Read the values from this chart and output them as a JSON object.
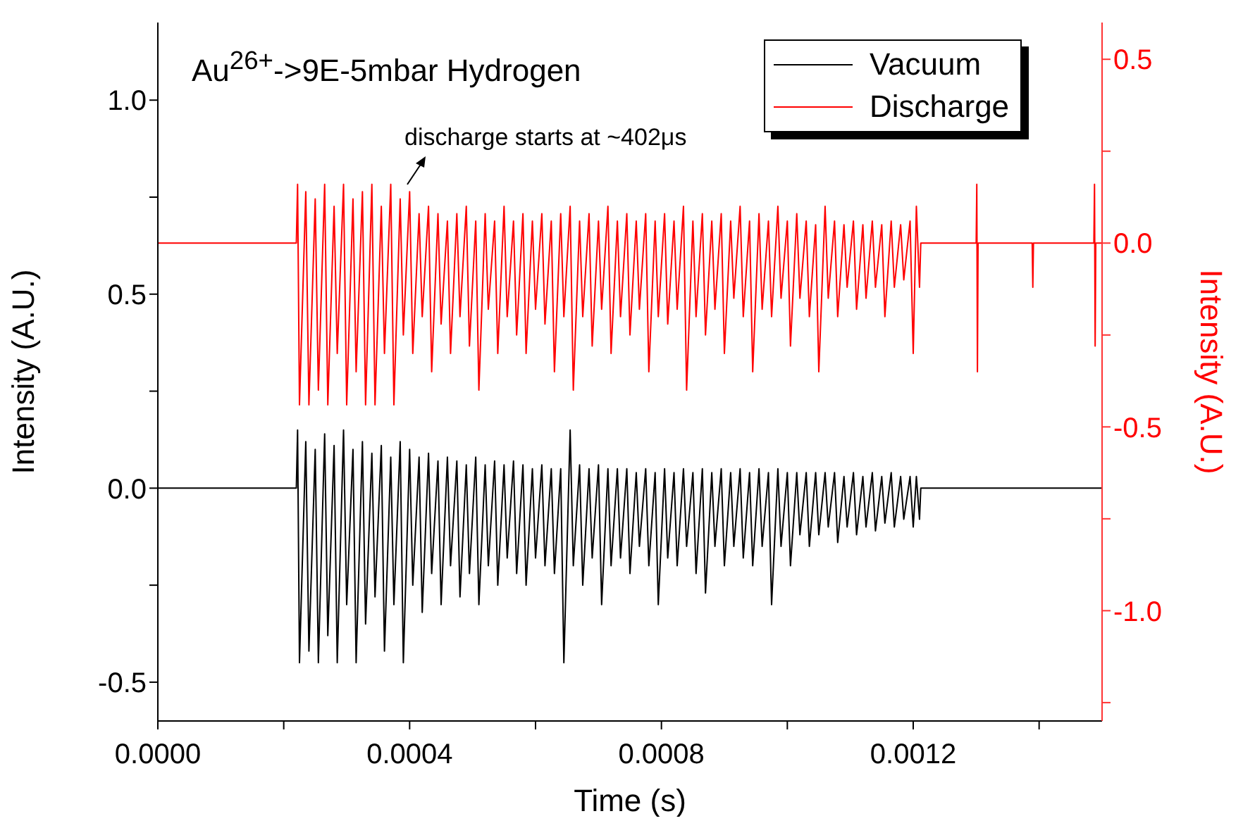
{
  "chart_data": {
    "type": "line",
    "title": "Au$^{26+}$->9E-5mbar Hydrogen",
    "xlabel": "Time (s)",
    "ylabel": "Intensity (A.U.)",
    "y2label": "Intensity (A.U.)",
    "annotations": [
      "discharge starts at ~402μs"
    ],
    "xlim": [
      0,
      0.0015
    ],
    "xticks": [
      {
        "value": 0,
        "label": "0.0000"
      },
      {
        "value": 0.0002,
        "label": null
      },
      {
        "value": 0.0004,
        "label": "0.0004"
      },
      {
        "value": 0.0006,
        "label": null
      },
      {
        "value": 0.0008,
        "label": "0.0008"
      },
      {
        "value": 0.001,
        "label": null
      },
      {
        "value": 0.0012,
        "label": "0.0012"
      },
      {
        "value": 0.0014,
        "label": null
      }
    ],
    "ylim": [
      -0.6,
      1.2
    ],
    "yticks": [
      {
        "value": -0.5,
        "label": "-0.5"
      },
      {
        "value": -0.25,
        "label": null
      },
      {
        "value": 0,
        "label": "0.0"
      },
      {
        "value": 0.25,
        "label": null
      },
      {
        "value": 0.5,
        "label": "0.5"
      },
      {
        "value": 0.75,
        "label": null
      },
      {
        "value": 1,
        "label": "1.0"
      }
    ],
    "y2lim": [
      -1.3,
      0.6
    ],
    "y2ticks": [
      {
        "value": -1.25,
        "label": null
      },
      {
        "value": -1,
        "label": "-1.0"
      },
      {
        "value": -0.75,
        "label": null
      },
      {
        "value": -0.5,
        "label": "-0.5"
      },
      {
        "value": -0.25,
        "label": null
      },
      {
        "value": 0,
        "label": "0.0"
      },
      {
        "value": 0.25,
        "label": null
      },
      {
        "value": 0.5,
        "label": "0.5"
      }
    ],
    "legend": "top right",
    "series": [
      {
        "name": "Vacuum",
        "color": "#000000",
        "x": [
          0,
          0.0001,
          0.00022,
          0.000222,
          0.000225,
          0.000235,
          0.00024,
          0.00025,
          0.000255,
          0.000265,
          0.00027,
          0.00028,
          0.000285,
          0.000295,
          0.0003,
          0.00031,
          0.000315,
          0.000325,
          0.00033,
          0.00034,
          0.000345,
          0.000355,
          0.00036,
          0.00037,
          0.000375,
          0.000385,
          0.00039,
          0.0004,
          0.000405,
          0.000415,
          0.00042,
          0.00043,
          0.000435,
          0.000445,
          0.00045,
          0.00046,
          0.000465,
          0.000475,
          0.00048,
          0.00049,
          0.000495,
          0.000505,
          0.00051,
          0.00052,
          0.000525,
          0.000535,
          0.00054,
          0.00055,
          0.000555,
          0.000565,
          0.00057,
          0.00058,
          0.000585,
          0.000595,
          0.0006,
          0.00061,
          0.000615,
          0.000625,
          0.00063,
          0.00064,
          0.000645,
          0.000655,
          0.00066,
          0.00067,
          0.000675,
          0.000685,
          0.00069,
          0.0007,
          0.000705,
          0.000715,
          0.00072,
          0.00073,
          0.000735,
          0.000745,
          0.00075,
          0.00076,
          0.000765,
          0.000775,
          0.00078,
          0.00079,
          0.000795,
          0.000805,
          0.00081,
          0.00082,
          0.000825,
          0.000835,
          0.00084,
          0.00085,
          0.000855,
          0.000865,
          0.00087,
          0.00088,
          0.000885,
          0.000895,
          0.0009,
          0.00091,
          0.000915,
          0.000925,
          0.00093,
          0.00094,
          0.000945,
          0.000955,
          0.00096,
          0.00097,
          0.000975,
          0.000985,
          0.00099,
          0.001,
          0.001005,
          0.001015,
          0.00102,
          0.00103,
          0.001035,
          0.001045,
          0.00105,
          0.00106,
          0.001065,
          0.001075,
          0.00108,
          0.00109,
          0.001095,
          0.001105,
          0.00111,
          0.00112,
          0.001125,
          0.001135,
          0.00114,
          0.00115,
          0.001155,
          0.001165,
          0.00117,
          0.00118,
          0.001185,
          0.001195,
          0.0012,
          0.001205,
          0.00121,
          0.001212,
          0.0015
        ],
        "values": [
          0,
          0,
          0,
          0.15,
          -0.45,
          0.12,
          -0.42,
          0.1,
          -0.45,
          0.14,
          -0.38,
          0.11,
          -0.45,
          0.15,
          -0.3,
          0.1,
          -0.45,
          0.12,
          -0.35,
          0.09,
          -0.28,
          0.11,
          -0.42,
          0.08,
          -0.3,
          0.12,
          -0.45,
          0.1,
          -0.25,
          0.08,
          -0.32,
          0.09,
          -0.22,
          0.07,
          -0.3,
          0.08,
          -0.2,
          0.07,
          -0.28,
          0.06,
          -0.22,
          0.08,
          -0.3,
          0.06,
          -0.2,
          0.07,
          -0.25,
          0.06,
          -0.18,
          0.07,
          -0.22,
          0.06,
          -0.25,
          0.05,
          -0.18,
          0.06,
          -0.2,
          0.05,
          -0.22,
          0.05,
          -0.45,
          0.15,
          -0.2,
          0.06,
          -0.25,
          0.05,
          -0.18,
          0.06,
          -0.3,
          0.05,
          -0.2,
          0.05,
          -0.18,
          0.05,
          -0.22,
          0.04,
          -0.15,
          0.05,
          -0.2,
          0.04,
          -0.3,
          0.05,
          -0.18,
          0.04,
          -0.2,
          0.05,
          -0.15,
          0.04,
          -0.22,
          0.05,
          -0.27,
          0.04,
          -0.15,
          0.05,
          -0.2,
          0.04,
          -0.15,
          0.05,
          -0.18,
          0.04,
          -0.2,
          0.05,
          -0.15,
          0.04,
          -0.3,
          0.05,
          -0.15,
          0.04,
          -0.2,
          0.04,
          -0.12,
          0.04,
          -0.15,
          0.04,
          -0.12,
          0.04,
          -0.1,
          0.04,
          -0.14,
          0.03,
          -0.1,
          0.04,
          -0.12,
          0.03,
          -0.1,
          0.04,
          -0.11,
          0.03,
          -0.09,
          0.04,
          -0.1,
          0.03,
          -0.08,
          0.03,
          -0.1,
          0.03,
          -0.08,
          0,
          0
        ]
      },
      {
        "name": "Discharge",
        "color": "#ff0000",
        "axis": "y2",
        "x": [
          0,
          0.0001,
          0.00022,
          0.000222,
          0.000225,
          0.000235,
          0.00024,
          0.00025,
          0.000255,
          0.000265,
          0.00027,
          0.00028,
          0.000285,
          0.000295,
          0.0003,
          0.00031,
          0.000315,
          0.000325,
          0.00033,
          0.00034,
          0.000345,
          0.000355,
          0.00036,
          0.00037,
          0.000375,
          0.000385,
          0.00039,
          0.0004,
          0.000405,
          0.000415,
          0.00042,
          0.00043,
          0.000435,
          0.000445,
          0.00045,
          0.00046,
          0.000465,
          0.000475,
          0.00048,
          0.00049,
          0.000495,
          0.000505,
          0.00051,
          0.00052,
          0.000525,
          0.000535,
          0.00054,
          0.00055,
          0.000555,
          0.000565,
          0.00057,
          0.00058,
          0.000585,
          0.000595,
          0.0006,
          0.00061,
          0.000615,
          0.000625,
          0.00063,
          0.00064,
          0.000645,
          0.000655,
          0.00066,
          0.00067,
          0.000675,
          0.000685,
          0.00069,
          0.0007,
          0.000705,
          0.000715,
          0.00072,
          0.00073,
          0.000735,
          0.000745,
          0.00075,
          0.00076,
          0.000765,
          0.000775,
          0.00078,
          0.00079,
          0.000795,
          0.000805,
          0.00081,
          0.00082,
          0.000825,
          0.000835,
          0.00084,
          0.00085,
          0.000855,
          0.000865,
          0.00087,
          0.00088,
          0.000885,
          0.000895,
          0.0009,
          0.00091,
          0.000915,
          0.000925,
          0.00093,
          0.00094,
          0.000945,
          0.000955,
          0.00096,
          0.00097,
          0.000975,
          0.000985,
          0.00099,
          0.001,
          0.001005,
          0.001015,
          0.00102,
          0.00103,
          0.001035,
          0.001045,
          0.00105,
          0.00106,
          0.001065,
          0.001075,
          0.00108,
          0.00109,
          0.001095,
          0.001105,
          0.00111,
          0.00112,
          0.001125,
          0.001135,
          0.00114,
          0.00115,
          0.001155,
          0.001165,
          0.00117,
          0.00118,
          0.001185,
          0.001195,
          0.0012,
          0.001205,
          0.00121,
          0.001212,
          0.0013,
          0.001301,
          0.001302,
          0.001303,
          0.001389,
          0.00139,
          0.001391,
          0.001487,
          0.001488,
          0.001489,
          0.00149,
          0.0015
        ],
        "values": [
          0,
          0,
          0,
          0.16,
          -0.44,
          0.14,
          -0.44,
          0.12,
          -0.4,
          0.16,
          -0.44,
          0.1,
          -0.3,
          0.16,
          -0.44,
          0.12,
          -0.35,
          0.14,
          -0.44,
          0.16,
          -0.44,
          0.1,
          -0.3,
          0.16,
          -0.44,
          0.12,
          -0.25,
          0.14,
          -0.3,
          0.08,
          -0.2,
          0.1,
          -0.35,
          0.08,
          -0.22,
          0.06,
          -0.3,
          0.08,
          -0.2,
          0.1,
          -0.28,
          0.06,
          -0.4,
          0.08,
          -0.18,
          0.06,
          -0.3,
          0.1,
          -0.2,
          0.06,
          -0.25,
          0.08,
          -0.3,
          0.06,
          -0.18,
          0.08,
          -0.22,
          0.06,
          -0.35,
          0.08,
          -0.2,
          0.1,
          -0.4,
          0.06,
          -0.2,
          0.08,
          -0.28,
          0.06,
          -0.18,
          0.1,
          -0.3,
          0.06,
          -0.2,
          0.08,
          -0.25,
          0.06,
          -0.18,
          0.08,
          -0.35,
          0.06,
          -0.2,
          0.08,
          -0.22,
          0.06,
          -0.18,
          0.1,
          -0.4,
          0.06,
          -0.2,
          0.08,
          -0.25,
          0.06,
          -0.18,
          0.08,
          -0.3,
          0.06,
          -0.15,
          0.1,
          -0.2,
          0.06,
          -0.35,
          0.08,
          -0.18,
          0.06,
          -0.2,
          0.1,
          -0.15,
          0.06,
          -0.28,
          0.08,
          -0.15,
          0.06,
          -0.2,
          0.05,
          -0.35,
          0.1,
          -0.15,
          0.06,
          -0.2,
          0.05,
          -0.12,
          0.06,
          -0.18,
          0.05,
          -0.15,
          0.06,
          -0.12,
          0.05,
          -0.2,
          0.06,
          -0.12,
          0.05,
          -0.1,
          0.06,
          -0.3,
          0.1,
          -0.12,
          0,
          0,
          0.16,
          -0.35,
          0,
          0,
          -0.12,
          0,
          0,
          0.16,
          -0.28,
          0,
          0
        ]
      }
    ]
  }
}
